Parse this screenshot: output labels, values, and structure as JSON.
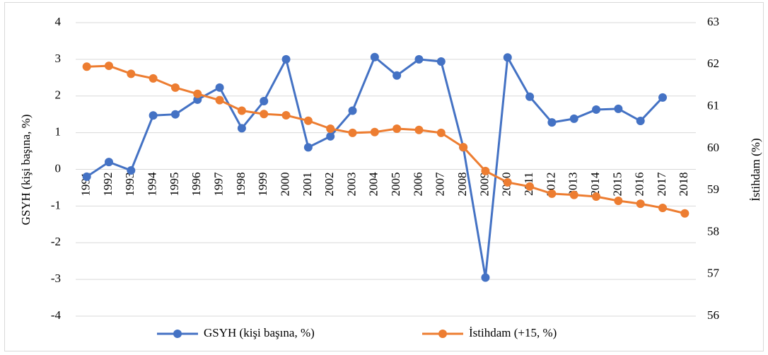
{
  "chart_data": {
    "type": "line",
    "categories": [
      "1991",
      "1992",
      "1993",
      "1994",
      "1995",
      "1996",
      "1997",
      "1998",
      "1999",
      "2000",
      "2001",
      "2002",
      "2003",
      "2004",
      "2005",
      "2006",
      "2007",
      "2008",
      "2009",
      "2010",
      "2011",
      "2012",
      "2013",
      "2014",
      "2015",
      "2016",
      "2017",
      "2018"
    ],
    "y_label": "GSYH (kişi başına, %)",
    "y2_label": "İstihdam (%)",
    "ylim": [
      -4,
      4
    ],
    "yticks": [
      -4,
      -3,
      -2,
      -1,
      0,
      1,
      2,
      3,
      4
    ],
    "y2lim": [
      56,
      63
    ],
    "y2ticks": [
      56,
      57,
      58,
      59,
      60,
      61,
      62,
      63
    ],
    "grid": true,
    "legend": "bottom",
    "series": [
      {
        "name": "GSYH (kişi başına, %)",
        "color": "#4472c4",
        "values": [
          -0.2,
          0.2,
          -0.03,
          1.47,
          1.5,
          1.9,
          2.23,
          1.12,
          1.86,
          3.0,
          0.6,
          0.9,
          1.6,
          3.06,
          2.56,
          3.0,
          2.94,
          0.6,
          -2.95,
          3.05,
          1.98,
          1.28,
          1.38,
          1.63,
          1.65,
          1.32,
          1.96,
          null
        ]
      },
      {
        "name": "İstihdam (+15, %)",
        "color": "#ed7d31",
        "axis": "y2",
        "values": [
          61.95,
          61.97,
          61.78,
          61.67,
          61.45,
          61.3,
          61.15,
          60.9,
          60.82,
          60.79,
          60.66,
          60.47,
          60.37,
          60.39,
          60.47,
          60.44,
          60.37,
          60.03,
          59.46,
          59.19,
          59.09,
          58.92,
          58.89,
          58.85,
          58.75,
          58.68,
          58.58,
          58.45
        ]
      }
    ]
  }
}
